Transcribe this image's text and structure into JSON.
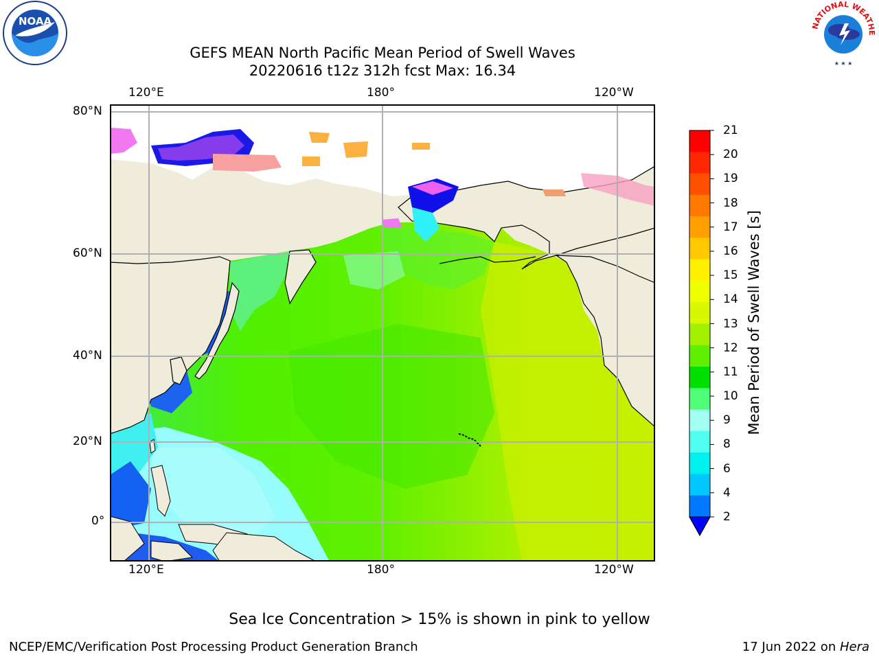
{
  "title": {
    "line1": "GEFS MEAN North Pacific Mean Period of Swell Waves",
    "line2": "20220616 t12z 312h fcst   Max: 16.34"
  },
  "logos": {
    "left": {
      "text": "NOAA",
      "ring_text": "NATIONAL OCEANIC AND ATMOSPHERIC ADMINISTRATION · U.S. DEPARTMENT OF COMMERCE"
    },
    "right": {
      "ring_text": "NATIONAL WEATHER SERVICE"
    }
  },
  "map": {
    "lon_ticks": [
      "120°E",
      "180°",
      "120°W"
    ],
    "lat_ticks": [
      "80°N",
      "60°N",
      "40°N",
      "20°N",
      "0°"
    ],
    "colors": {
      "land": "#efecdc",
      "ocean_yellow_green": "#c8f000",
      "ocean_green": "#5ff000",
      "ocean_mid_green": "#2fe800",
      "ocean_light_cyan": "#98fcfc",
      "ocean_cyan": "#20f8f8",
      "ocean_blue": "#1460f0",
      "deep_blue": "#0000e0",
      "ice_pink": "#f078f0",
      "ice_orange": "#fcb040",
      "grid": "#b0b0b0"
    }
  },
  "colorbar": {
    "label": "Mean Period of Swell Waves [s]",
    "ticks": [
      "21",
      "20",
      "19",
      "18",
      "17",
      "16",
      "15",
      "14",
      "13",
      "12",
      "11",
      "10",
      "9",
      "8",
      "6",
      "4",
      "2"
    ],
    "colors_top_to_bottom": [
      "#ff0000",
      "#ff2800",
      "#ff5000",
      "#ff7800",
      "#ffa000",
      "#ffc800",
      "#fff000",
      "#f0ff00",
      "#d7f800",
      "#a0f000",
      "#5ff000",
      "#00e000",
      "#50ff78",
      "#a0fff0",
      "#50fff0",
      "#00f0f0",
      "#00c8ff",
      "#0078ff"
    ],
    "under_color": "#0000ff"
  },
  "footnote": "Sea Ice Concentration > 15% is shown in pink to yellow",
  "footer": {
    "left": "NCEP/EMC/Verification Post Processing Product Generation Branch",
    "right_prefix": "17 Jun 2022 on ",
    "right_machine": "Hera"
  }
}
